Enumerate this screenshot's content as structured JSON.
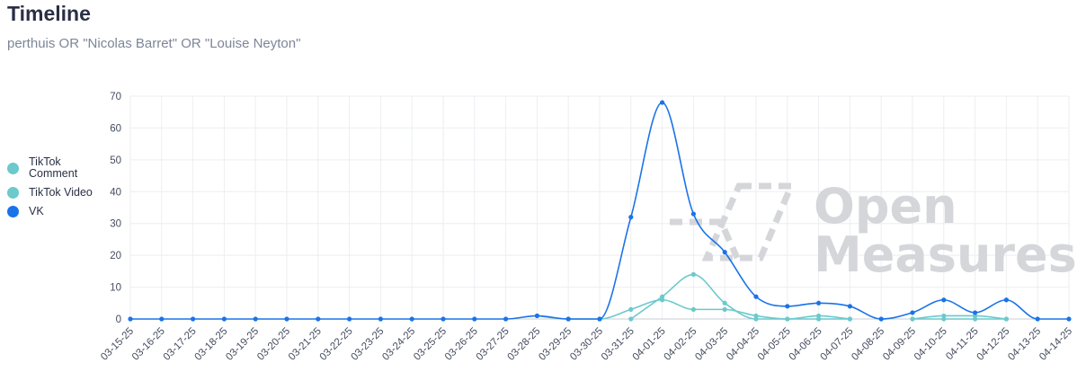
{
  "header": {
    "title": "Timeline",
    "subtitle": "perthuis OR \"Nicolas Barret\" OR \"Louise Neyton\""
  },
  "watermark": {
    "line1": "Open",
    "line2": "Measures"
  },
  "chart_data": {
    "type": "line",
    "title": "Timeline",
    "subtitle": "perthuis OR \"Nicolas Barret\" OR \"Louise Neyton\"",
    "xlabel": "",
    "ylabel": "",
    "ylim": [
      0,
      70
    ],
    "yticks": [
      0,
      10,
      20,
      30,
      40,
      50,
      60,
      70
    ],
    "grid": true,
    "legend_position": "left",
    "categories": [
      "03-15-25",
      "03-16-25",
      "03-17-25",
      "03-18-25",
      "03-19-25",
      "03-20-25",
      "03-21-25",
      "03-22-25",
      "03-23-25",
      "03-24-25",
      "03-25-25",
      "03-26-25",
      "03-27-25",
      "03-28-25",
      "03-29-25",
      "03-30-25",
      "03-31-25",
      "04-01-25",
      "04-02-25",
      "04-03-25",
      "04-04-25",
      "04-05-25",
      "04-06-25",
      "04-07-25",
      "04-08-25",
      "04-09-25",
      "04-10-25",
      "04-11-25",
      "04-12-25",
      "04-13-25",
      "04-14-25"
    ],
    "series": [
      {
        "name": "TikTok Comment",
        "color": "#6cc9cc",
        "values": [
          null,
          null,
          null,
          null,
          null,
          null,
          null,
          null,
          null,
          null,
          null,
          null,
          null,
          1,
          0,
          0,
          3,
          6,
          3,
          3,
          1,
          0,
          1,
          0,
          null,
          0,
          1,
          1,
          0,
          null,
          null
        ]
      },
      {
        "name": "TikTok Video",
        "color": "#6cc9cc",
        "values": [
          null,
          null,
          null,
          null,
          null,
          null,
          null,
          null,
          null,
          null,
          null,
          null,
          null,
          null,
          null,
          null,
          0,
          7,
          14,
          5,
          0,
          0,
          0,
          0,
          null,
          0,
          0,
          0,
          0,
          null,
          null
        ]
      },
      {
        "name": "VK",
        "color": "#1a73e8",
        "values": [
          0,
          0,
          0,
          0,
          0,
          0,
          0,
          0,
          0,
          0,
          0,
          0,
          0,
          1,
          0,
          0,
          32,
          68,
          33,
          21,
          7,
          4,
          5,
          4,
          0,
          2,
          6,
          2,
          6,
          0,
          0
        ]
      }
    ]
  }
}
